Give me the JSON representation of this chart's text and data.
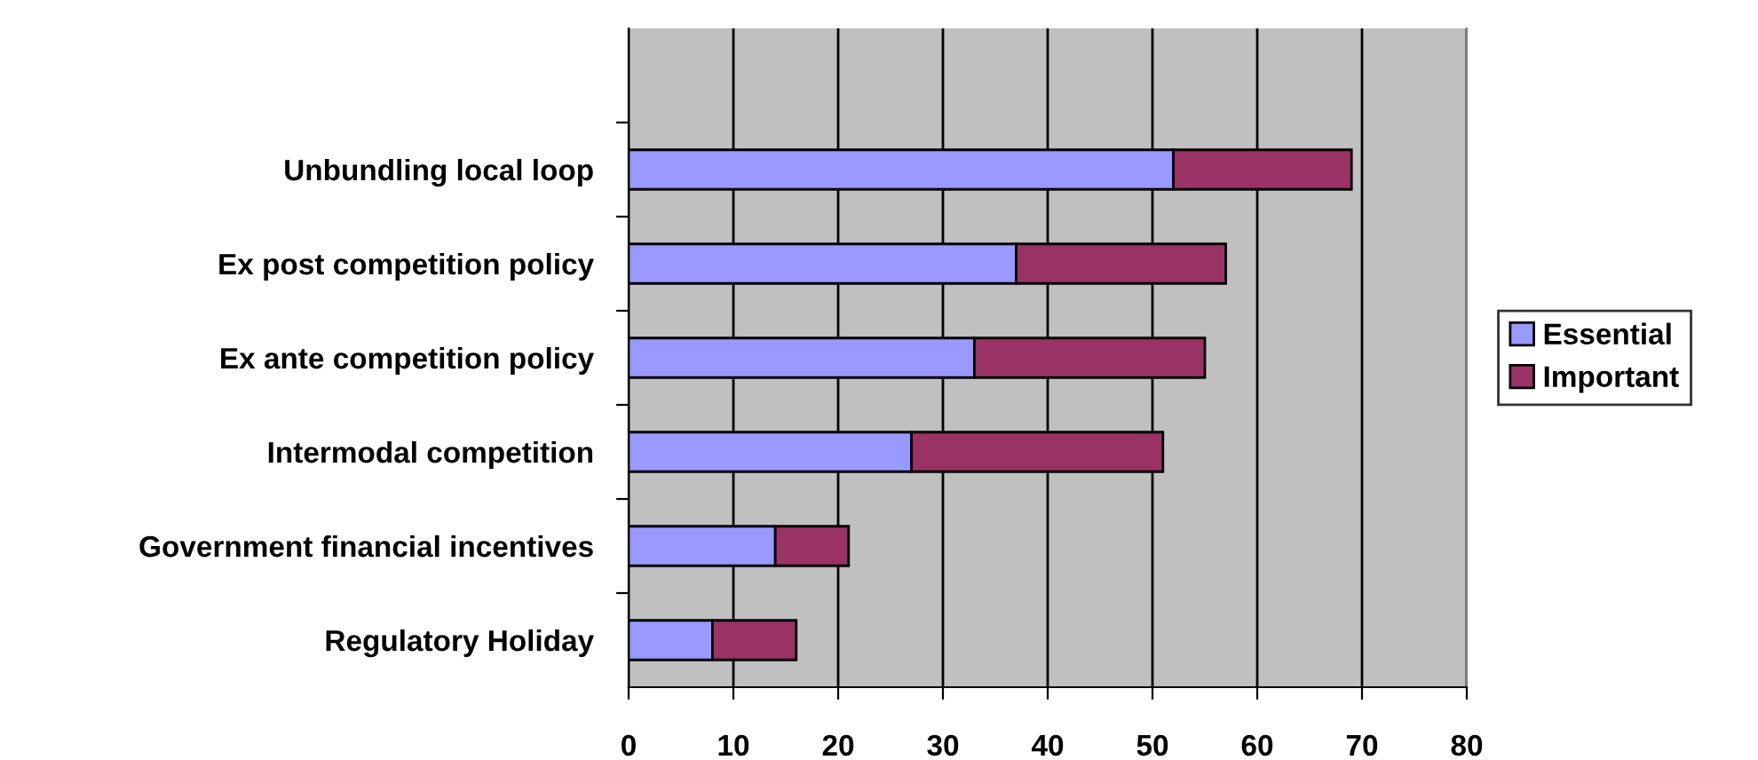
{
  "chart_data": {
    "type": "bar",
    "orientation": "horizontal",
    "stacked": true,
    "categories": [
      null,
      "Unbundling local loop",
      "Ex post competition policy",
      "Ex ante competition policy",
      "Intermodal competition",
      "Government financial incentives",
      "Regulatory Holiday"
    ],
    "series": [
      {
        "name": "Essential",
        "color": "#9999ff",
        "values": [
          null,
          52,
          37,
          33,
          27,
          14,
          8
        ]
      },
      {
        "name": "Important",
        "color": "#993366",
        "values": [
          null,
          17,
          20,
          22,
          24,
          7,
          8
        ]
      }
    ],
    "xlim": [
      0,
      80
    ],
    "xticks": [
      0,
      10,
      20,
      30,
      40,
      50,
      60,
      70,
      80
    ],
    "grid": "x",
    "legend": "right"
  }
}
